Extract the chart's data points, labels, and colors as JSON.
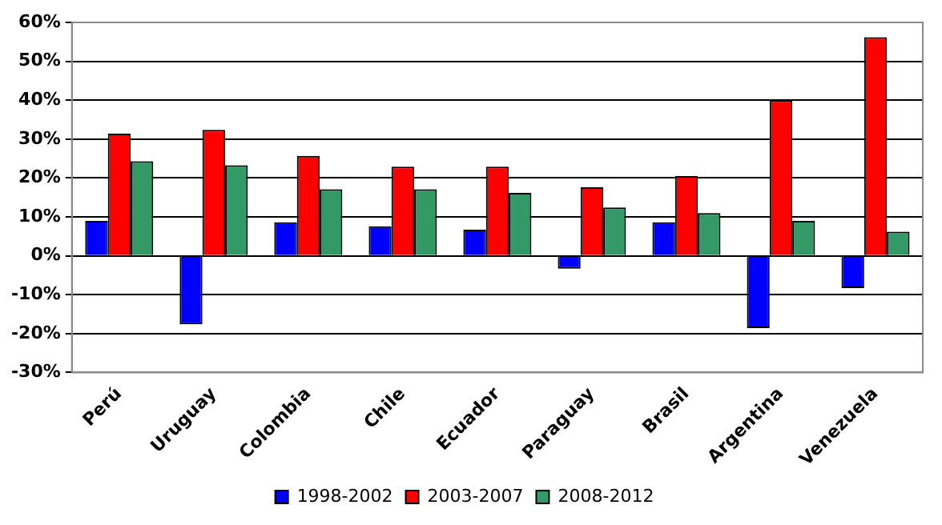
{
  "chart_data": {
    "type": "bar",
    "categories": [
      "Perú",
      "Uruguay",
      "Colombia",
      "Chile",
      "Ecuador",
      "Paraguay",
      "Brasil",
      "Argentina",
      "Venezuela"
    ],
    "series": [
      {
        "name": "1998-2002",
        "color": "#0000ff",
        "values": [
          9.0,
          -17.6,
          8.6,
          7.6,
          6.7,
          -3.3,
          8.6,
          -18.6,
          -8.3
        ]
      },
      {
        "name": "2003-2007",
        "color": "#ff0000",
        "values": [
          31.4,
          32.4,
          25.7,
          22.9,
          22.9,
          17.6,
          20.5,
          40.0,
          56.2
        ]
      },
      {
        "name": "2008-2012",
        "color": "#339966",
        "values": [
          24.3,
          23.3,
          17.1,
          17.1,
          16.2,
          12.4,
          11.0,
          9.0,
          6.2
        ]
      }
    ],
    "ylim": [
      -30,
      60
    ],
    "yticks": [
      {
        "value": -30,
        "label": "-30%"
      },
      {
        "value": -20,
        "label": "-20%"
      },
      {
        "value": -10,
        "label": "-10%"
      },
      {
        "value": 0,
        "label": "0%"
      },
      {
        "value": 10,
        "label": "10%"
      },
      {
        "value": 20,
        "label": "20%"
      },
      {
        "value": 30,
        "label": "30%"
      },
      {
        "value": 40,
        "label": "40%"
      },
      {
        "value": 50,
        "label": "50%"
      },
      {
        "value": 60,
        "label": "60%"
      }
    ],
    "grid": "y",
    "legend": "bottom"
  }
}
